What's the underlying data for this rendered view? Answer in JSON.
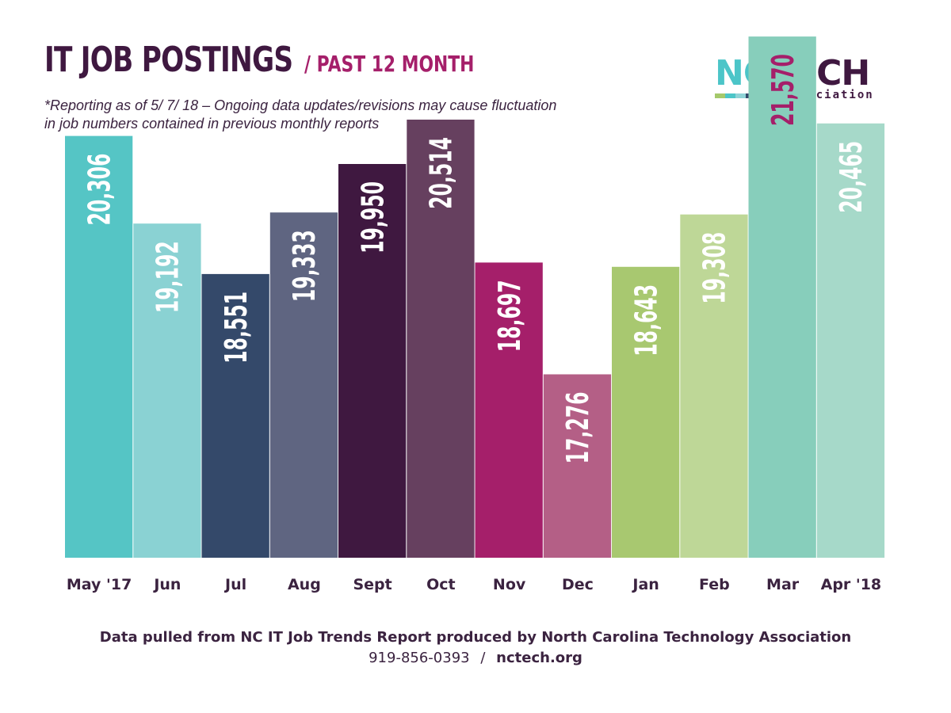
{
  "header": {
    "title": "IT JOB POSTINGS",
    "subtitle": "/ PAST 12 MONTH",
    "note_line1": "*Reporting as of 5/ 7/ 18 – Ongoing data updates/revisions may cause fluctuation",
    "note_line2": "in job numbers contained in previous monthly reports"
  },
  "logo": {
    "part1": "NC",
    "part2": "TECH",
    "tagline": "Association",
    "stripe_colors": [
      "#a5c96b",
      "#4cc5c8",
      "#8fd3d6",
      "#34496a",
      "#3f1840",
      "#a51f6a"
    ]
  },
  "footer": {
    "line1": "Data pulled from NC IT Job Trends Report produced by North Carolina Technology Association",
    "phone": "919-856-0393",
    "separator": "/",
    "url": "nctech.org"
  },
  "chart_data": {
    "type": "bar",
    "categories": [
      "May '17",
      "Jun",
      "Jul",
      "Aug",
      "Sept",
      "Oct",
      "Nov",
      "Dec",
      "Jan",
      "Feb",
      "Mar",
      "Apr '18"
    ],
    "values": [
      20306,
      19192,
      18551,
      19333,
      19950,
      20514,
      18697,
      17276,
      18643,
      19308,
      21570,
      20465
    ],
    "value_labels": [
      "20,306",
      "19,192",
      "18,551",
      "19,333",
      "19,950",
      "20,514",
      "18,697",
      "17,276",
      "18,643",
      "19,308",
      "21,570",
      "20,465"
    ],
    "bar_colors": [
      "#55c5c5",
      "#8ad2d3",
      "#34496a",
      "#5f6581",
      "#3f1840",
      "#66405f",
      "#a51f6a",
      "#b45f86",
      "#a8c870",
      "#bed797",
      "#87cebb",
      "#a6d9c9"
    ],
    "label_colors": [
      "#ffffff",
      "#ffffff",
      "#ffffff",
      "#ffffff",
      "#ffffff",
      "#ffffff",
      "#ffffff",
      "#ffffff",
      "#ffffff",
      "#ffffff",
      "#a51f6a",
      "#ffffff"
    ],
    "title": "IT JOB POSTINGS",
    "xlabel": "",
    "ylabel": "",
    "grid": false
  }
}
